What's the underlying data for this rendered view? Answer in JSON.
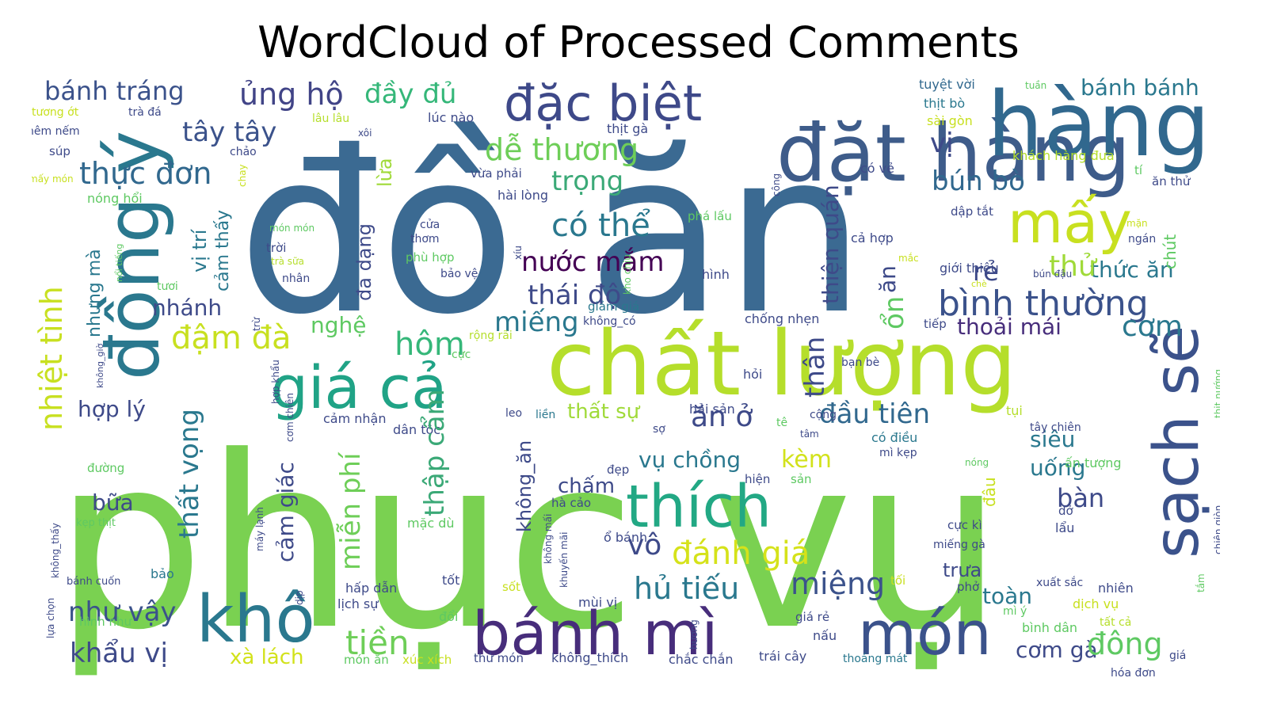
{
  "chart_data": {
    "type": "wordcloud",
    "title": "WordCloud of Processed Comments",
    "colormap": "viridis",
    "background": "#ffffff",
    "words": [
      {
        "text": "phục vụ",
        "weight": 100,
        "color": "#7ad151"
      },
      {
        "text": "đồ ăn",
        "weight": 96,
        "color": "#3b6a92"
      },
      {
        "text": "chất lượng",
        "weight": 62,
        "color": "#b5de2b"
      },
      {
        "text": "bánh mì",
        "weight": 42,
        "color": "#472d7b"
      },
      {
        "text": "đặt hàng",
        "weight": 44,
        "color": "#3e5c8a"
      },
      {
        "text": "đồng ý",
        "weight": 40,
        "color": "#2a788e"
      },
      {
        "text": "món",
        "weight": 42,
        "color": "#3b528b"
      },
      {
        "text": "khô",
        "weight": 42,
        "color": "#2a788e"
      },
      {
        "text": "sạch sẽ",
        "weight": 36,
        "color": "#3b528b"
      },
      {
        "text": "thích",
        "weight": 36,
        "color": "#22a884"
      },
      {
        "text": "giá cả",
        "weight": 33,
        "color": "#20a386"
      },
      {
        "text": "đặc biệt",
        "weight": 33,
        "color": "#3e4989"
      },
      {
        "text": "hàng",
        "weight": 40,
        "color": "#31688e"
      },
      {
        "text": "mấy",
        "weight": 32,
        "color": "#c8e020"
      },
      {
        "text": "bánh tráng",
        "weight": 16,
        "color": "#3b528b"
      },
      {
        "text": "ủng hộ",
        "weight": 18,
        "color": "#414487"
      },
      {
        "text": "đầy đủ",
        "weight": 16,
        "color": "#35b779"
      },
      {
        "text": "dễ thương",
        "weight": 18,
        "color": "#6ece58"
      },
      {
        "text": "trọng",
        "weight": 16,
        "color": "#3ba977"
      },
      {
        "text": "thực đơn",
        "weight": 17,
        "color": "#31688e"
      },
      {
        "text": "tây tây",
        "weight": 16,
        "color": "#3b528b"
      },
      {
        "text": "có thể",
        "weight": 18,
        "color": "#2a788e"
      },
      {
        "text": "nước mắm",
        "weight": 16,
        "color": "#440154"
      },
      {
        "text": "thái độ",
        "weight": 16,
        "color": "#3e4a89"
      },
      {
        "text": "miếng",
        "weight": 16,
        "color": "#2a788e"
      },
      {
        "text": "hôm",
        "weight": 18,
        "color": "#35b779"
      },
      {
        "text": "bún bò",
        "weight": 16,
        "color": "#31688e"
      },
      {
        "text": "bình thường",
        "weight": 20,
        "color": "#3b528b"
      },
      {
        "text": "thức ăn",
        "weight": 14,
        "color": "#2a788e"
      },
      {
        "text": "thoải mái",
        "weight": 14,
        "color": "#472d7b"
      },
      {
        "text": "cơm",
        "weight": 16,
        "color": "#2a788e"
      },
      {
        "text": "đầu tiên",
        "weight": 16,
        "color": "#31688e"
      },
      {
        "text": "ăn ở",
        "weight": 16,
        "color": "#3e4a89"
      },
      {
        "text": "vụ chồng",
        "weight": 14,
        "color": "#2a788e"
      },
      {
        "text": "kèm",
        "weight": 14,
        "color": "#d2e21b"
      },
      {
        "text": "đánh giá",
        "weight": 18,
        "color": "#d5e21a"
      },
      {
        "text": "hủ tiếu",
        "weight": 18,
        "color": "#2a788e"
      },
      {
        "text": "miệng",
        "weight": 18,
        "color": "#3b528b"
      },
      {
        "text": "tiền",
        "weight": 18,
        "color": "#6ece58"
      },
      {
        "text": "như vậy",
        "weight": 16,
        "color": "#3b528b"
      },
      {
        "text": "khẩu vị",
        "weight": 16,
        "color": "#3e4a89"
      },
      {
        "text": "xà lách",
        "weight": 13,
        "color": "#d2e21b"
      },
      {
        "text": "đậm đà",
        "weight": 18,
        "color": "#c8e020"
      },
      {
        "text": "nghệ",
        "weight": 13,
        "color": "#5ec962"
      },
      {
        "text": "nhánh",
        "weight": 14,
        "color": "#3e4a89"
      },
      {
        "text": "hợp lý",
        "weight": 14,
        "color": "#3e4a89"
      },
      {
        "text": "thất sự",
        "weight": 13,
        "color": "#a0da39"
      },
      {
        "text": "chấm",
        "weight": 13,
        "color": "#3e4a89"
      },
      {
        "text": "siêu",
        "weight": 13,
        "color": "#2a788e"
      },
      {
        "text": "uống",
        "weight": 13,
        "color": "#2a788e"
      },
      {
        "text": "bàn",
        "weight": 14,
        "color": "#3e4a89"
      },
      {
        "text": "rẻ",
        "weight": 14,
        "color": "#3e4a89"
      },
      {
        "text": "thử",
        "weight": 16,
        "color": "#a0da39"
      },
      {
        "text": "vị",
        "weight": 16,
        "color": "#3e4a89"
      },
      {
        "text": "trưa",
        "weight": 12,
        "color": "#3e4a89"
      },
      {
        "text": "toàn",
        "weight": 13,
        "color": "#2a788e"
      },
      {
        "text": "cơm gà",
        "weight": 14,
        "color": "#3e4a89"
      },
      {
        "text": "đông",
        "weight": 16,
        "color": "#5ec962"
      },
      {
        "text": "bánh bánh",
        "weight": 12,
        "color": "#2a788e"
      },
      {
        "text": "bữa",
        "weight": 13,
        "color": "#3e4a89"
      },
      {
        "text": "tuyệt vời",
        "weight": 8,
        "color": "#31688e"
      },
      {
        "text": "thịt bò",
        "weight": 8,
        "color": "#2a788e"
      },
      {
        "text": "lúc nào",
        "weight": 8,
        "color": "#3e4a89"
      },
      {
        "text": "trà đá",
        "weight": 8,
        "color": "#3e4a89"
      },
      {
        "text": "lâu lâu",
        "weight": 8,
        "color": "#b5de2b"
      },
      {
        "text": "thịt gà",
        "weight": 8,
        "color": "#3e4a89"
      },
      {
        "text": "sài gòn",
        "weight": 8,
        "color": "#c8e020"
      },
      {
        "text": "khách hàng đưa",
        "weight": 8,
        "color": "#b5de2b"
      },
      {
        "text": "có vẻ",
        "weight": 8,
        "color": "#3e4a89"
      },
      {
        "text": "hài lòng",
        "weight": 8,
        "color": "#3e4a89"
      },
      {
        "text": "vừa phải",
        "weight": 8,
        "color": "#3e4a89"
      },
      {
        "text": "nóng hổi",
        "weight": 8,
        "color": "#5ec962"
      },
      {
        "text": "cửa",
        "weight": 8,
        "color": "#3e4a89"
      },
      {
        "text": "thơm",
        "weight": 8,
        "color": "#3e4a89"
      },
      {
        "text": "phù hợp",
        "weight": 8,
        "color": "#5ec962"
      },
      {
        "text": "bảo vệ",
        "weight": 8,
        "color": "#3e4a89"
      },
      {
        "text": "hình",
        "weight": 8,
        "color": "#3e4a89"
      },
      {
        "text": "cả hợp",
        "weight": 8,
        "color": "#3e4a89"
      },
      {
        "text": "giới thiệu",
        "weight": 8,
        "color": "#3e4a89"
      },
      {
        "text": "giảm giá",
        "weight": 8,
        "color": "#2a788e"
      },
      {
        "text": "không_có",
        "weight": 8,
        "color": "#3e4a89"
      },
      {
        "text": "chống nhẹn",
        "weight": 8,
        "color": "#3e4a89"
      },
      {
        "text": "hỏi",
        "weight": 8,
        "color": "#3e4a89"
      },
      {
        "text": "bạn bè",
        "weight": 8,
        "color": "#3e4a89"
      },
      {
        "text": "cộng",
        "weight": 8,
        "color": "#3e4a89"
      },
      {
        "text": "có điều",
        "weight": 8,
        "color": "#2a788e"
      },
      {
        "text": "mì kẹp",
        "weight": 8,
        "color": "#3e4a89"
      },
      {
        "text": "cảm nhận",
        "weight": 8,
        "color": "#3e4a89"
      },
      {
        "text": "dân tộc",
        "weight": 8,
        "color": "#3e4a89"
      },
      {
        "text": "hải sản",
        "weight": 8,
        "color": "#3e4a89"
      },
      {
        "text": "tụi",
        "weight": 8,
        "color": "#b5de2b"
      },
      {
        "text": "tây chiên",
        "weight": 8,
        "color": "#3e4a89"
      },
      {
        "text": "ấn tượng",
        "weight": 8,
        "color": "#5ec962"
      },
      {
        "text": "xuất sắc",
        "weight": 8,
        "color": "#3e4a89"
      },
      {
        "text": "nhiên",
        "weight": 8,
        "color": "#3e4a89"
      },
      {
        "text": "dịch vụ",
        "weight": 8,
        "color": "#c8e020"
      },
      {
        "text": "tất cả",
        "weight": 8,
        "color": "#b5de2b"
      },
      {
        "text": "bình dân",
        "weight": 8,
        "color": "#5ec962"
      },
      {
        "text": "hóa đơn",
        "weight": 8,
        "color": "#3e4a89"
      },
      {
        "text": "giá rẻ",
        "weight": 8,
        "color": "#3e4a89"
      },
      {
        "text": "nấu",
        "weight": 8,
        "color": "#3e4a89"
      },
      {
        "text": "trái cây",
        "weight": 8,
        "color": "#3e4a89"
      },
      {
        "text": "thoáng mát",
        "weight": 8,
        "color": "#2a788e"
      },
      {
        "text": "chắc chắn",
        "weight": 8,
        "color": "#3e4a89"
      },
      {
        "text": "không_thích",
        "weight": 8,
        "color": "#3e4a89"
      },
      {
        "text": "thử món",
        "weight": 8,
        "color": "#3e4a89"
      },
      {
        "text": "xúc xích",
        "weight": 8,
        "color": "#c8e020"
      },
      {
        "text": "món ăn",
        "weight": 8,
        "color": "#5ec962"
      },
      {
        "text": "mùi vị",
        "weight": 8,
        "color": "#3e4a89"
      },
      {
        "text": "sốt",
        "weight": 8,
        "color": "#c8e020"
      },
      {
        "text": "hấp dẫn",
        "weight": 8,
        "color": "#3e4a89"
      },
      {
        "text": "lịch sự",
        "weight": 8,
        "color": "#3e4a89"
      },
      {
        "text": "đổi",
        "weight": 8,
        "color": "#5ec962"
      },
      {
        "text": "tốt",
        "weight": 8,
        "color": "#3e4a89"
      },
      {
        "text": "ổ bánh",
        "weight": 8,
        "color": "#3e4a89"
      },
      {
        "text": "hà cảo",
        "weight": 8,
        "color": "#3e4a89"
      },
      {
        "text": "mặc dù",
        "weight": 8,
        "color": "#5ec962"
      },
      {
        "text": "đẹp",
        "weight": 8,
        "color": "#3e4a89"
      },
      {
        "text": "hiện",
        "weight": 8,
        "color": "#3e4a89"
      },
      {
        "text": "sản",
        "weight": 8,
        "color": "#5ec962"
      },
      {
        "text": "bánh cuốn",
        "weight": 8,
        "color": "#3e4a89"
      },
      {
        "text": "bảo",
        "weight": 8,
        "color": "#2a788e"
      },
      {
        "text": "hình như",
        "weight": 8,
        "color": "#5ec962"
      },
      {
        "text": "kẹp thịt",
        "weight": 8,
        "color": "#5ec962"
      },
      {
        "text": "đường",
        "weight": 8,
        "color": "#5ec962"
      },
      {
        "text": "súp",
        "weight": 8,
        "color": "#3e4a89"
      },
      {
        "text": "nêm nếm",
        "weight": 8,
        "color": "#3e4a89"
      },
      {
        "text": "tương ớt",
        "weight": 8,
        "color": "#c8e020"
      },
      {
        "text": "mấy món",
        "weight": 7,
        "color": "#c8e020"
      },
      {
        "text": "món món",
        "weight": 7,
        "color": "#5ec962"
      },
      {
        "text": "trời",
        "weight": 8,
        "color": "#3e4a89"
      },
      {
        "text": "trà sữa",
        "weight": 7,
        "color": "#b5de2b"
      },
      {
        "text": "nhân",
        "weight": 8,
        "color": "#3e4a89"
      },
      {
        "text": "tươi",
        "weight": 8,
        "color": "#5ec962"
      },
      {
        "text": "rộng rãi",
        "weight": 8,
        "color": "#b5de2b"
      },
      {
        "text": "cực",
        "weight": 8,
        "color": "#5ec962"
      },
      {
        "text": "leo",
        "weight": 8,
        "color": "#3e4a89"
      },
      {
        "text": "liền",
        "weight": 8,
        "color": "#2a788e"
      },
      {
        "text": "sợ",
        "weight": 8,
        "color": "#3e4a89"
      },
      {
        "text": "tê",
        "weight": 8,
        "color": "#5ec962"
      },
      {
        "text": "tâm",
        "weight": 7,
        "color": "#3e4a89"
      },
      {
        "text": "nóng",
        "weight": 7,
        "color": "#5ec962"
      },
      {
        "text": "dở",
        "weight": 8,
        "color": "#3e4a89"
      },
      {
        "text": "lẩu",
        "weight": 8,
        "color": "#3e4a89"
      },
      {
        "text": "miếng gà",
        "weight": 8,
        "color": "#3e4a89"
      },
      {
        "text": "cực kì",
        "weight": 8,
        "color": "#3e4a89"
      },
      {
        "text": "phở",
        "weight": 8,
        "color": "#3e4a89"
      },
      {
        "text": "mì ý",
        "weight": 8,
        "color": "#5ec962"
      },
      {
        "text": "tối",
        "weight": 8,
        "color": "#c8e020"
      },
      {
        "text": "xôi",
        "weight": 7,
        "color": "#3e4a89"
      },
      {
        "text": "chảo",
        "weight": 8,
        "color": "#3e4a89"
      },
      {
        "text": "phá lấu",
        "weight": 8,
        "color": "#5ec962"
      },
      {
        "text": "dập tắt",
        "weight": 8,
        "color": "#3e4a89"
      },
      {
        "text": "mặn",
        "weight": 7,
        "color": "#c8e020"
      },
      {
        "text": "ngán",
        "weight": 8,
        "color": "#3e4a89"
      },
      {
        "text": "mắc",
        "weight": 7,
        "color": "#c8e020"
      },
      {
        "text": "bún đậu",
        "weight": 7,
        "color": "#3e4a89"
      },
      {
        "text": "ăn thử",
        "weight": 8,
        "color": "#3e4a89"
      },
      {
        "text": "tí",
        "weight": 8,
        "color": "#5ec962"
      },
      {
        "text": "tuần",
        "weight": 7,
        "color": "#5ec962"
      },
      {
        "text": "tiếp",
        "weight": 8,
        "color": "#3e4a89"
      },
      {
        "text": "giá",
        "weight": 8,
        "color": "#3e4a89"
      },
      {
        "text": "chút",
        "weight": 10,
        "color": "#5ec962"
      },
      {
        "text": "nhiệt tình",
        "weight": 18,
        "color": "#c8e020"
      },
      {
        "text": "nhưng mà",
        "weight": 12,
        "color": "#2a788e"
      },
      {
        "text": "vị trí",
        "weight": 12,
        "color": "#2a788e"
      },
      {
        "text": "cảm thấy",
        "weight": 12,
        "color": "#2a788e"
      },
      {
        "text": "đa dạng",
        "weight": 12,
        "color": "#3e4a89"
      },
      {
        "text": "lừa",
        "weight": 12,
        "color": "#a0da39"
      },
      {
        "text": "thất vọng",
        "weight": 16,
        "color": "#2a788e"
      },
      {
        "text": "miễn phí",
        "weight": 16,
        "color": "#6ece58"
      },
      {
        "text": "thập cẩm",
        "weight": 16,
        "color": "#3ba977"
      },
      {
        "text": "cảm giác",
        "weight": 13,
        "color": "#3e4a89"
      },
      {
        "text": "không_ăn",
        "weight": 12,
        "color": "#3e4a89"
      },
      {
        "text": "thiện quán",
        "weight": 13,
        "color": "#3e4a89"
      },
      {
        "text": "thân",
        "weight": 14,
        "color": "#3e4a89"
      },
      {
        "text": "ổn",
        "weight": 14,
        "color": "#5ec962"
      },
      {
        "text": "ăn",
        "weight": 13,
        "color": "#3e4a89"
      },
      {
        "text": "vô",
        "weight": 16,
        "color": "#3e4a89"
      },
      {
        "text": "đâu",
        "weight": 12,
        "color": "#c8e020"
      },
      {
        "text": "không mấi",
        "weight": 7,
        "color": "#3e4a89"
      },
      {
        "text": "khuyến mãi",
        "weight": 7,
        "color": "#3e4a89"
      },
      {
        "text": "không_giờ",
        "weight": 6,
        "color": "#3e4a89"
      },
      {
        "text": "hợp khẩu",
        "weight": 7,
        "color": "#3e4a89"
      },
      {
        "text": "cơm chiên",
        "weight": 7,
        "color": "#3e4a89"
      },
      {
        "text": "máy lạnh",
        "weight": 7,
        "color": "#3e4a89"
      },
      {
        "text": "dịp",
        "weight": 7,
        "color": "#3e4a89"
      },
      {
        "text": "lựa chọn",
        "weight": 7,
        "color": "#3e4a89"
      },
      {
        "text": "không_thấy",
        "weight": 7,
        "color": "#3e4a89"
      },
      {
        "text": "nổi tiếng",
        "weight": 7,
        "color": "#5ec962"
      },
      {
        "text": "chay",
        "weight": 7,
        "color": "#c8e020"
      },
      {
        "text": "trừ",
        "weight": 7,
        "color": "#3e4a89"
      },
      {
        "text": "kho chịu",
        "weight": 6,
        "color": "#5ec962"
      },
      {
        "text": "xíu",
        "weight": 7,
        "color": "#3e4a89"
      },
      {
        "text": "hương",
        "weight": 7,
        "color": "#3e4a89"
      },
      {
        "text": "thịt nướng",
        "weight": 7,
        "color": "#5ec962"
      },
      {
        "text": "chiên giòn",
        "weight": 7,
        "color": "#3e4a89"
      },
      {
        "text": "tắm",
        "weight": 7,
        "color": "#5ec962"
      },
      {
        "text": "chè",
        "weight": 6,
        "color": "#c8e020"
      },
      {
        "text": "vị",
        "weight": 7,
        "color": "#3e4a89"
      },
      {
        "text": "công",
        "weight": 6,
        "color": "#3e4a89"
      }
    ]
  }
}
